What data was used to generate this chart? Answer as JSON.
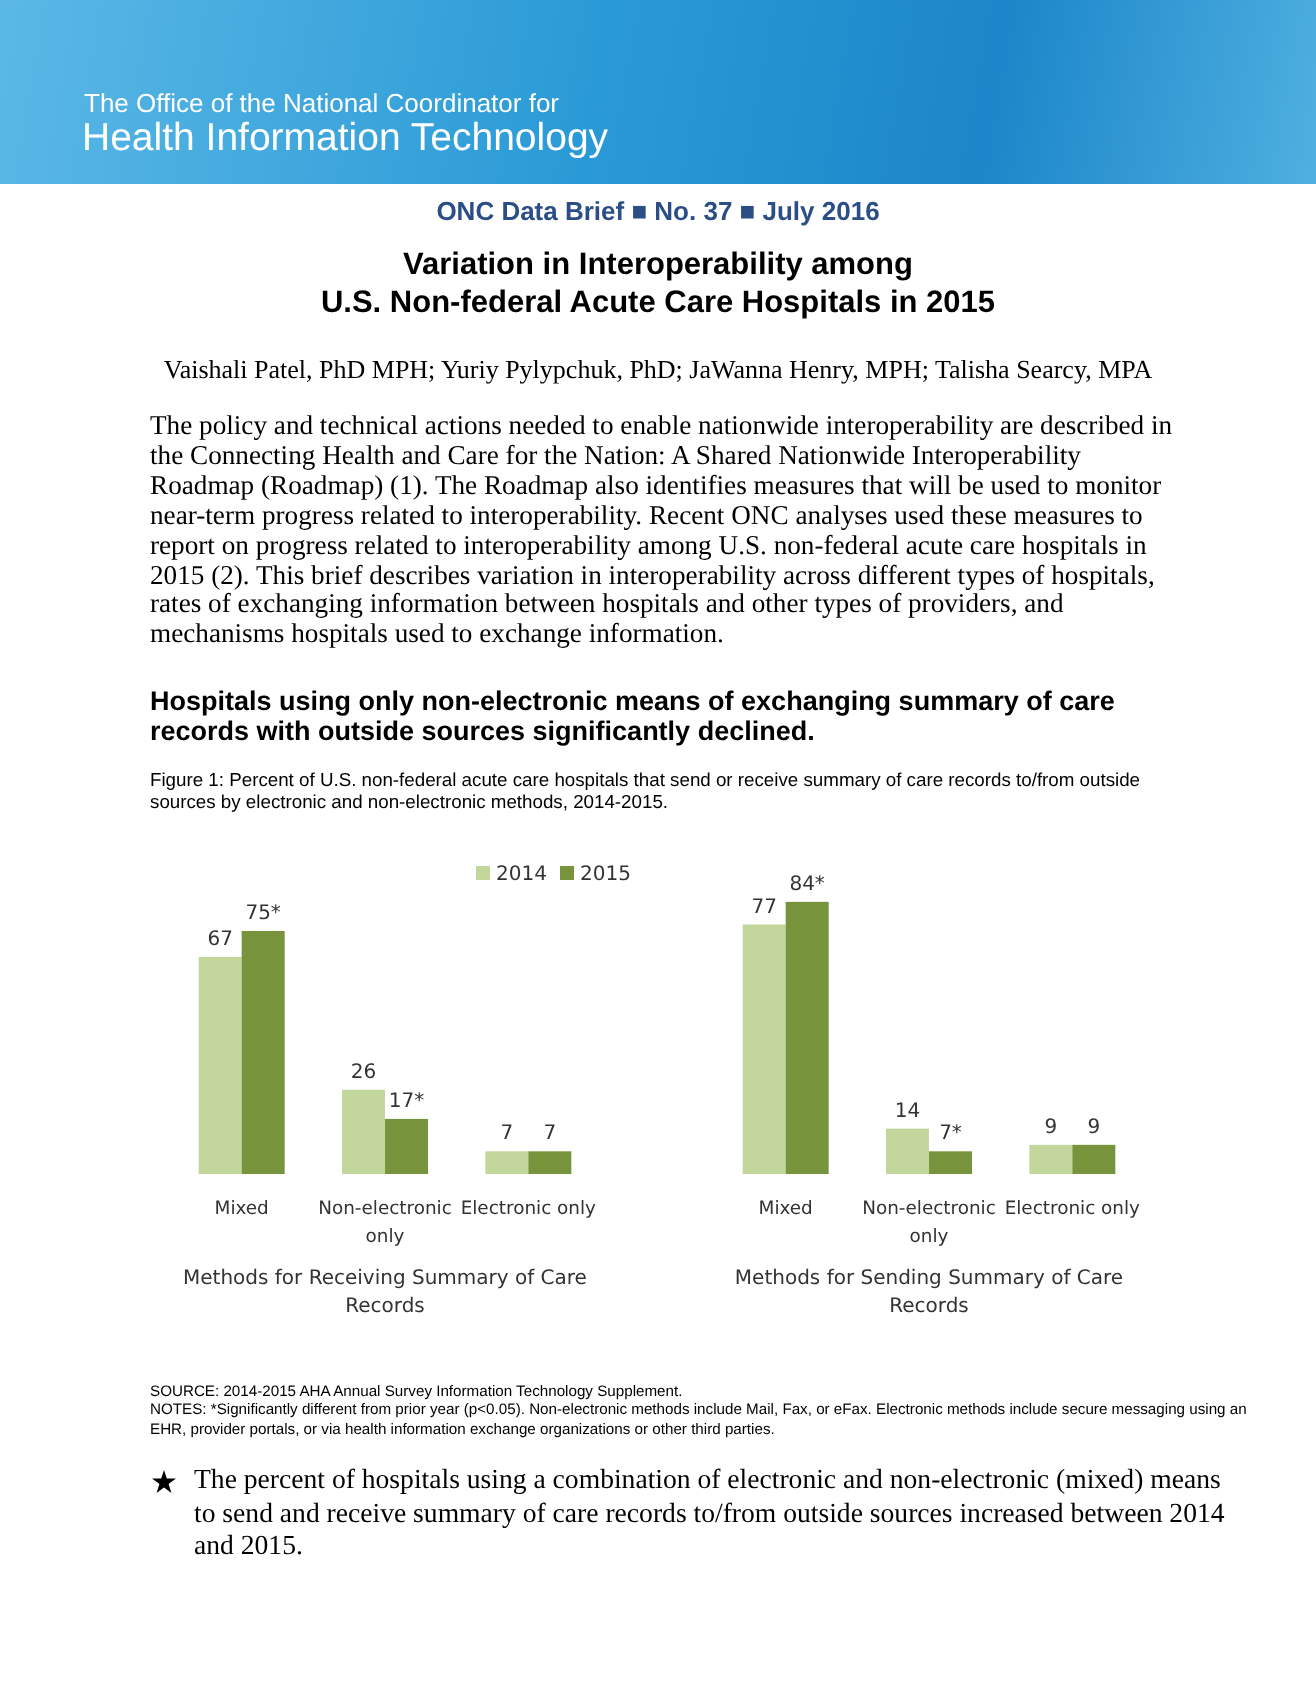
{
  "chart_data": [
    {
      "type": "bar",
      "title": "Figure 1: Percent of U.S. non-federal acute care hospitals that send or receive summary of care records to/from outside sources by electronic and non-electronic methods, 2014-2015.",
      "xlabel": "Methods for Receiving Summary of Care Records",
      "categories": [
        "Mixed",
        "Non-electronic only",
        "Electronic only"
      ],
      "series": [
        {
          "name": "2014",
          "color": "#c3d69b",
          "values": [
            67,
            26,
            7
          ],
          "value_labels": [
            "67",
            "26",
            "7"
          ]
        },
        {
          "name": "2015",
          "color": "#77933c",
          "values": [
            75,
            17,
            7
          ],
          "value_labels": [
            "75*",
            "17*",
            "7"
          ]
        }
      ],
      "legend": "top right",
      "annotations": [
        "The Office of the National Coordinator for",
        "Health Information Technology",
        "ONC Data Brief ■ No. 37 ■ July 2016",
        "Variation in Interoperability among",
        "U.S. Non-federal Acute Care Hospitals in 2015",
        "Vaishali Patel, PhD MPH; Yuriy Pylypchuk, PhD; JaWanna Henry, MPH; Talisha Searcy, MPA",
        "The policy and technical actions needed to enable nationwide interoperability are described in the Connecting Health and Care for the Nation: A Shared Nationwide Interoperability Roadmap (Roadmap) (1).  The Roadmap also identifies measures that will be used to monitor near-term progress related to interoperability.  Recent ONC analyses used these measures to report on progress related to interoperability among U.S. non-federal acute care hospitals in 2015 (2).  This brief describes variation in interoperability across different types of hospitals, rates of exchanging information between hospitals and other types of providers, and mechanisms hospitals used to exchange information.",
        "Hospitals using only non-electronic means of exchanging summary of care records with outside sources significantly declined."
      ]
    },
    {
      "type": "bar",
      "xlabel": "Methods for Sending Summary of Care Records",
      "categories": [
        "Mixed",
        "Non-electronic only",
        "Electronic only"
      ],
      "series": [
        {
          "color": "#c3d69b",
          "values": [
            77,
            14,
            9
          ],
          "value_labels": [
            "77",
            "14",
            "9"
          ]
        },
        {
          "color": "#77933c",
          "values": [
            84,
            7,
            9
          ],
          "value_labels": [
            "84*",
            "7*",
            "9"
          ]
        }
      ],
      "annotations": [
        "SOURCE: 2014-2015 AHA Annual Survey Information Technology Supplement.",
        "NOTES: *Significantly different from prior year (p<0.05). Non-electronic methods include Mail, Fax, or eFax. Electronic methods include secure messaging using an EHR, provider portals, or via health information exchange organizations or other third parties.",
        "The percent of hospitals using a combination of electronic and non-electronic (mixed) means to send and receive summary of care records to/from outside sources increased between 2014 and 2015."
      ]
    }
  ]
}
